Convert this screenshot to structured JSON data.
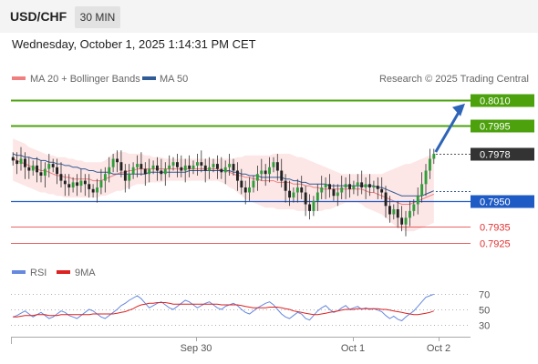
{
  "header": {
    "symbol": "USD/CHF",
    "timeframe": "30 MIN",
    "datetime": "Wednesday, October 1, 2025 1:14:31 PM CET"
  },
  "legend": {
    "bollinger": "MA 20 + Bollinger Bands",
    "ma50": "MA 50",
    "copyright": "Research © 2025 Trading Central"
  },
  "colors": {
    "resistance": "#4ca10d",
    "support_blue": "#1f5bc4",
    "support_red": "#e03030",
    "current": "#333333",
    "ma20": "#f08080",
    "ma50": "#2f5b96",
    "band_fill": "#fde0e0",
    "rsi": "#6688dd",
    "rsi_ma": "#dd2222"
  },
  "chart_data": [
    {
      "type": "candlestick",
      "y_range": [
        0.7918,
        0.8018
      ],
      "levels": [
        {
          "label": "0.8010",
          "value": 0.801,
          "kind": "resistance"
        },
        {
          "label": "0.7995",
          "value": 0.7995,
          "kind": "resistance"
        },
        {
          "label": "0.7978",
          "value": 0.7978,
          "kind": "current"
        },
        {
          "label": "0.7950",
          "value": 0.795,
          "kind": "support"
        },
        {
          "label": "0.7935",
          "value": 0.7935,
          "kind": "support-minor"
        },
        {
          "label": "0.7925",
          "value": 0.7925,
          "kind": "support-minor"
        }
      ],
      "x_ticks": [
        "Sep 30",
        "Oct 1",
        "Oct 2"
      ],
      "closes": [
        0.7974,
        0.7972,
        0.7975,
        0.797,
        0.7968,
        0.7971,
        0.7967,
        0.7965,
        0.7969,
        0.7972,
        0.797,
        0.7966,
        0.7962,
        0.796,
        0.7958,
        0.7961,
        0.7959,
        0.7962,
        0.796,
        0.7957,
        0.7955,
        0.7958,
        0.7962,
        0.7966,
        0.797,
        0.7975,
        0.7973,
        0.7968,
        0.7962,
        0.7966,
        0.797,
        0.7972,
        0.7969,
        0.7966,
        0.7969,
        0.7971,
        0.7968,
        0.7966,
        0.7969,
        0.7971,
        0.7973,
        0.797,
        0.7968,
        0.7971,
        0.7969,
        0.7971,
        0.7973,
        0.7971,
        0.7968,
        0.797,
        0.7972,
        0.7969,
        0.7967,
        0.797,
        0.7972,
        0.7968,
        0.7962,
        0.7958,
        0.7955,
        0.7958,
        0.7962,
        0.7966,
        0.7968,
        0.7966,
        0.797,
        0.7973,
        0.7968,
        0.7962,
        0.7956,
        0.7952,
        0.7955,
        0.7958,
        0.7955,
        0.7948,
        0.7944,
        0.795,
        0.7955,
        0.7958,
        0.796,
        0.7957,
        0.7953,
        0.7955,
        0.7958,
        0.796,
        0.7957,
        0.7959,
        0.7961,
        0.7958,
        0.796,
        0.7958,
        0.7959,
        0.7957,
        0.7955,
        0.7947,
        0.7942,
        0.7945,
        0.794,
        0.7936,
        0.794,
        0.7944,
        0.7948,
        0.7953,
        0.796,
        0.7968,
        0.7975,
        0.7978
      ],
      "bb_upper": [
        0.7987,
        0.7986,
        0.7985,
        0.7984,
        0.7982,
        0.7981,
        0.798,
        0.7979,
        0.7978,
        0.7977,
        0.7977,
        0.7976,
        0.7976,
        0.7976,
        0.7975,
        0.7975,
        0.7974,
        0.7974,
        0.7973,
        0.7973,
        0.7973,
        0.7973,
        0.7973,
        0.7974,
        0.7976,
        0.7978,
        0.7979,
        0.7979,
        0.7979,
        0.7978,
        0.7978,
        0.7978,
        0.7978,
        0.7977,
        0.7977,
        0.7976,
        0.7976,
        0.7976,
        0.7975,
        0.7975,
        0.7975,
        0.7975,
        0.7975,
        0.7975,
        0.7975,
        0.7975,
        0.7975,
        0.7975,
        0.7975,
        0.7975,
        0.7975,
        0.7975,
        0.7975,
        0.7975,
        0.7975,
        0.7975,
        0.7976,
        0.7976,
        0.7977,
        0.7977,
        0.7977,
        0.7977,
        0.7977,
        0.7977,
        0.7977,
        0.7978,
        0.7978,
        0.7978,
        0.7978,
        0.7978,
        0.7977,
        0.7976,
        0.7976,
        0.7975,
        0.7974,
        0.7973,
        0.7972,
        0.7971,
        0.797,
        0.7969,
        0.7968,
        0.7967,
        0.7966,
        0.7966,
        0.7966,
        0.7966,
        0.7966,
        0.7966,
        0.7966,
        0.7966,
        0.7966,
        0.7966,
        0.7966,
        0.7967,
        0.7968,
        0.7969,
        0.797,
        0.7971,
        0.7972,
        0.7972,
        0.7973,
        0.7974,
        0.7975,
        0.7976,
        0.7977,
        0.7977
      ],
      "bb_lower": [
        0.7962,
        0.7961,
        0.796,
        0.7959,
        0.7958,
        0.7957,
        0.7956,
        0.7955,
        0.7955,
        0.7954,
        0.7954,
        0.7953,
        0.7953,
        0.7952,
        0.7952,
        0.7952,
        0.7952,
        0.7952,
        0.7952,
        0.7952,
        0.7952,
        0.7952,
        0.7953,
        0.7953,
        0.7954,
        0.7955,
        0.7956,
        0.7956,
        0.7957,
        0.7958,
        0.7959,
        0.796,
        0.796,
        0.796,
        0.7961,
        0.7961,
        0.7961,
        0.7961,
        0.7962,
        0.7962,
        0.7962,
        0.7962,
        0.7962,
        0.7962,
        0.7962,
        0.7962,
        0.7962,
        0.7962,
        0.7962,
        0.7962,
        0.7962,
        0.7962,
        0.7961,
        0.796,
        0.7958,
        0.7957,
        0.7955,
        0.7953,
        0.7951,
        0.795,
        0.7949,
        0.7948,
        0.7947,
        0.7946,
        0.7946,
        0.7946,
        0.7945,
        0.7945,
        0.7945,
        0.7945,
        0.7945,
        0.7944,
        0.7944,
        0.7944,
        0.7944,
        0.7944,
        0.7944,
        0.7944,
        0.7945,
        0.7945,
        0.7946,
        0.7947,
        0.7948,
        0.7949,
        0.7949,
        0.7949,
        0.7949,
        0.7948,
        0.7946,
        0.7945,
        0.7944,
        0.7943,
        0.7942,
        0.794,
        0.7938,
        0.7936,
        0.7934,
        0.7933,
        0.7932,
        0.7932,
        0.7932,
        0.7933,
        0.7934,
        0.7935,
        0.7936,
        0.7937
      ],
      "ma50": [
        0.7978,
        0.7977,
        0.7977,
        0.7976,
        0.7976,
        0.7975,
        0.7975,
        0.7974,
        0.7974,
        0.7973,
        0.7973,
        0.7972,
        0.7972,
        0.7971,
        0.7971,
        0.797,
        0.797,
        0.7969,
        0.7969,
        0.7968,
        0.7968,
        0.7967,
        0.7967,
        0.7967,
        0.7967,
        0.7966,
        0.7966,
        0.7966,
        0.7966,
        0.7966,
        0.7966,
        0.7966,
        0.7966,
        0.7966,
        0.7967,
        0.7967,
        0.7967,
        0.7967,
        0.7967,
        0.7967,
        0.7967,
        0.7967,
        0.7967,
        0.7967,
        0.7968,
        0.7968,
        0.7968,
        0.7968,
        0.7968,
        0.7968,
        0.7968,
        0.7968,
        0.7968,
        0.7968,
        0.7968,
        0.7967,
        0.7967,
        0.7966,
        0.7966,
        0.7965,
        0.7965,
        0.7965,
        0.7964,
        0.7964,
        0.7964,
        0.7964,
        0.7964,
        0.7964,
        0.7963,
        0.7963,
        0.7962,
        0.7962,
        0.7961,
        0.7961,
        0.796,
        0.796,
        0.796,
        0.796,
        0.796,
        0.7959,
        0.7959,
        0.7959,
        0.7959,
        0.7959,
        0.7959,
        0.7959,
        0.7959,
        0.7959,
        0.7959,
        0.7959,
        0.7959,
        0.7958,
        0.7958,
        0.7957,
        0.7956,
        0.7955,
        0.7954,
        0.7953,
        0.7953,
        0.7953,
        0.7953,
        0.7953,
        0.7953,
        0.7954,
        0.7955,
        0.7956
      ],
      "ma20": [
        0.7975,
        0.7974,
        0.7973,
        0.7972,
        0.7971,
        0.797,
        0.7969,
        0.7968,
        0.7968,
        0.7967,
        0.7966,
        0.7965,
        0.7965,
        0.7964,
        0.7964,
        0.7963,
        0.7963,
        0.7963,
        0.7963,
        0.7963,
        0.7962,
        0.7962,
        0.7962,
        0.7963,
        0.7964,
        0.7965,
        0.7966,
        0.7967,
        0.7967,
        0.7968,
        0.7968,
        0.7969,
        0.7969,
        0.7969,
        0.7969,
        0.7969,
        0.7969,
        0.7969,
        0.7969,
        0.7969,
        0.7969,
        0.7969,
        0.7969,
        0.7969,
        0.7969,
        0.7969,
        0.7969,
        0.7969,
        0.7969,
        0.7969,
        0.7969,
        0.7969,
        0.7968,
        0.7968,
        0.7967,
        0.7966,
        0.7965,
        0.7965,
        0.7964,
        0.7964,
        0.7963,
        0.7963,
        0.7962,
        0.7962,
        0.7962,
        0.7962,
        0.7961,
        0.7961,
        0.7961,
        0.7961,
        0.796,
        0.796,
        0.796,
        0.7959,
        0.7959,
        0.7958,
        0.7958,
        0.7957,
        0.7957,
        0.7957,
        0.7957,
        0.7957,
        0.7957,
        0.7957,
        0.7957,
        0.7957,
        0.7957,
        0.7957,
        0.7956,
        0.7955,
        0.7955,
        0.7954,
        0.7953,
        0.7952,
        0.7951,
        0.795,
        0.7949,
        0.7948,
        0.7948,
        0.7948,
        0.7949,
        0.795,
        0.7951,
        0.7952,
        0.7953,
        0.7954
      ]
    },
    {
      "type": "line",
      "legend": [
        "RSI",
        "9MA"
      ],
      "y_range": [
        20,
        80
      ],
      "y_ticks": [
        "70",
        "50",
        "30"
      ],
      "tick_values": [
        70,
        50,
        30
      ],
      "rsi": [
        40,
        42,
        45,
        48,
        44,
        40,
        43,
        46,
        42,
        38,
        40,
        44,
        48,
        46,
        42,
        40,
        38,
        42,
        46,
        50,
        48,
        44,
        40,
        38,
        42,
        46,
        50,
        55,
        58,
        62,
        65,
        68,
        64,
        58,
        52,
        55,
        58,
        60,
        56,
        52,
        50,
        54,
        58,
        62,
        60,
        56,
        52,
        55,
        58,
        60,
        56,
        52,
        50,
        54,
        56,
        58,
        55,
        50,
        46,
        44,
        48,
        52,
        55,
        58,
        60,
        56,
        50,
        44,
        40,
        38,
        42,
        46,
        44,
        38,
        36,
        42,
        48,
        52,
        55,
        50,
        46,
        48,
        52,
        55,
        50,
        52,
        54,
        50,
        52,
        50,
        51,
        49,
        47,
        42,
        38,
        41,
        37,
        35,
        40,
        44,
        48,
        54,
        60,
        66,
        68,
        70
      ],
      "rsi_ma": [
        40,
        40,
        41,
        42,
        42,
        42,
        43,
        43,
        43,
        42,
        42,
        42,
        43,
        43,
        43,
        43,
        43,
        43,
        43,
        43,
        44,
        44,
        44,
        44,
        44,
        44,
        45,
        46,
        47,
        49,
        51,
        54,
        56,
        57,
        58,
        58,
        59,
        59,
        59,
        58,
        57,
        57,
        57,
        57,
        57,
        57,
        57,
        57,
        57,
        57,
        57,
        57,
        56,
        56,
        56,
        56,
        56,
        55,
        54,
        53,
        52,
        52,
        52,
        52,
        53,
        53,
        53,
        52,
        51,
        50,
        48,
        47,
        46,
        45,
        44,
        43,
        43,
        44,
        45,
        46,
        47,
        48,
        49,
        50,
        50,
        50,
        51,
        51,
        51,
        51,
        51,
        51,
        50,
        50,
        49,
        48,
        47,
        46,
        45,
        44,
        43,
        43,
        44,
        45,
        46,
        48
      ]
    }
  ]
}
